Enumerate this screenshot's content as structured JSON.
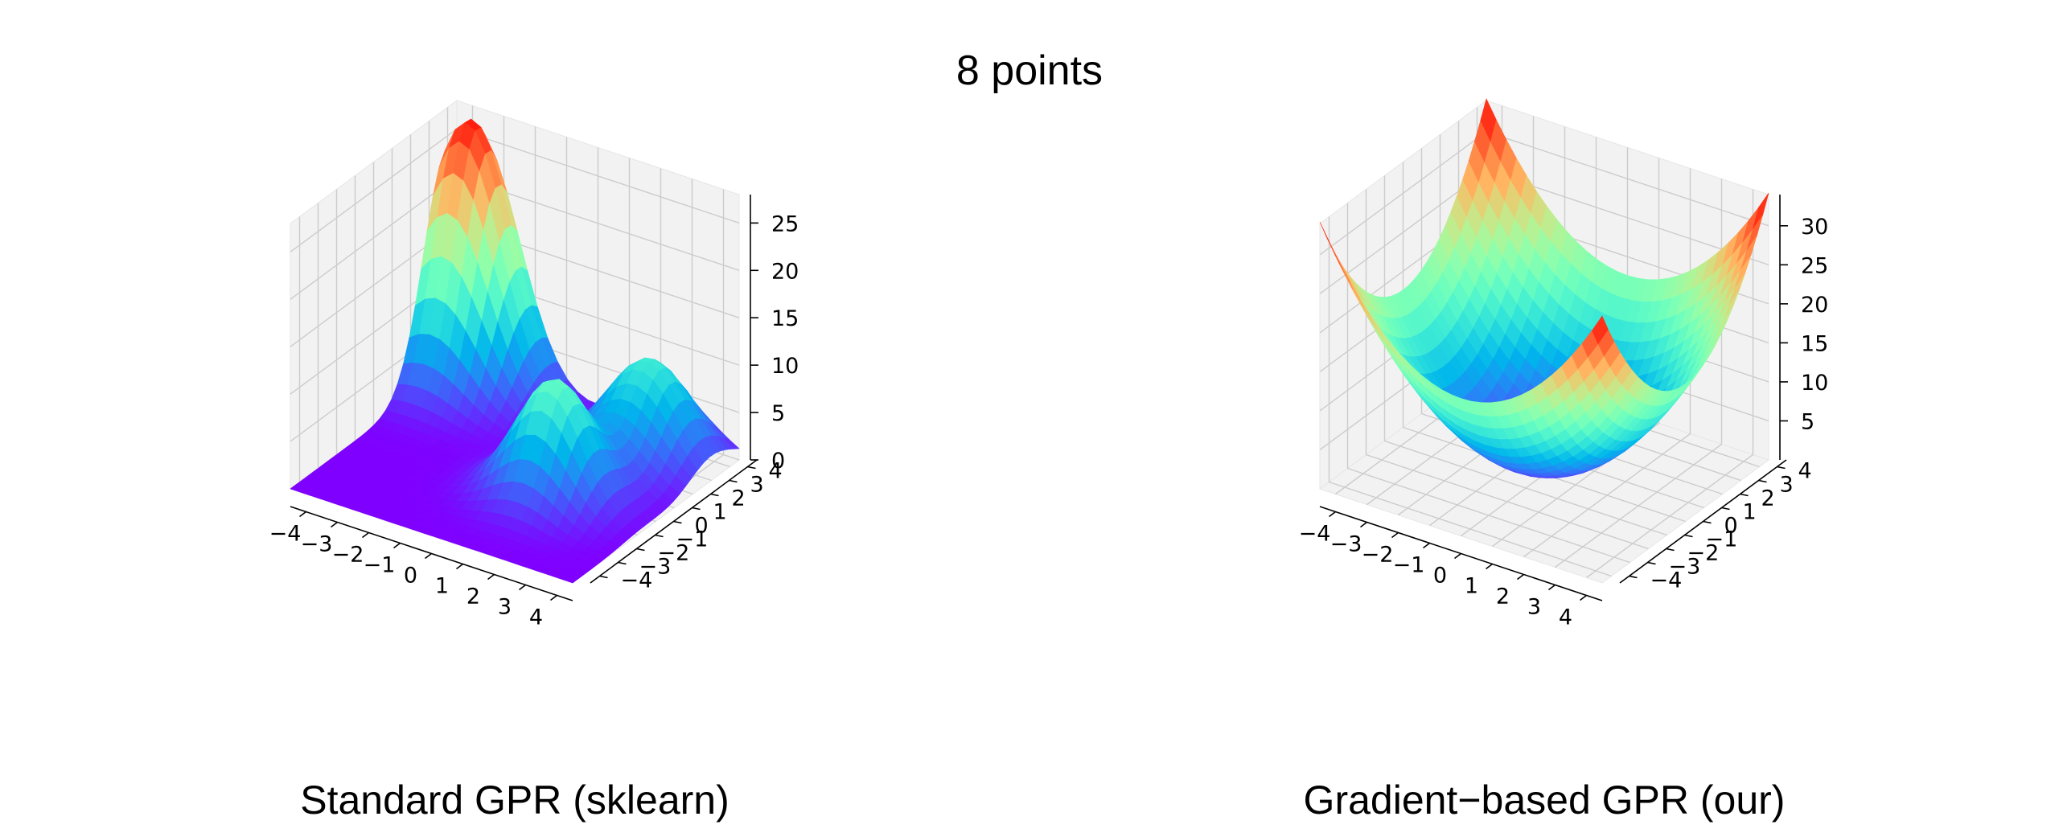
{
  "figure": {
    "title": "8 points"
  },
  "chart_data": [
    {
      "type": "surface3d",
      "title": "Standard GPR (sklearn)",
      "colormap": "rainbow",
      "x": {
        "range": [
          -4.5,
          4.5
        ],
        "ticks": [
          -4,
          -3,
          -2,
          -1,
          0,
          1,
          2,
          3,
          4
        ]
      },
      "y": {
        "range": [
          -4.5,
          4.5
        ],
        "ticks": [
          -4,
          -3,
          -2,
          -1,
          0,
          1,
          2,
          3,
          4
        ]
      },
      "z": {
        "range": [
          0,
          28
        ],
        "ticks": [
          0,
          5,
          10,
          15,
          20,
          25
        ]
      },
      "surface": {
        "description_peaks": [
          {
            "x": -3.8,
            "y": 4.0,
            "z": 27.5
          },
          {
            "x": 1.6,
            "y": -0.6,
            "z": 12.5
          },
          {
            "x": 2.5,
            "y": 3.0,
            "z": 10.5
          }
        ]
      }
    },
    {
      "type": "surface3d",
      "title": "Gradient−based GPR (our)",
      "colormap": "rainbow",
      "x": {
        "range": [
          -4.5,
          4.5
        ],
        "ticks": [
          -4,
          -3,
          -2,
          -1,
          0,
          1,
          2,
          3,
          4
        ]
      },
      "y": {
        "range": [
          -4.5,
          4.5
        ],
        "ticks": [
          -4,
          -3,
          -2,
          -1,
          0,
          1,
          2,
          3,
          4
        ]
      },
      "z": {
        "range": [
          0,
          34
        ],
        "ticks": [
          5,
          10,
          15,
          20,
          25,
          30
        ]
      },
      "surface": {
        "corner_values": [
          {
            "x": -4.5,
            "y": 4.5,
            "z": 33
          },
          {
            "x": -4.5,
            "y": -4.5,
            "z": 26
          },
          {
            "x": 4.5,
            "y": 4.5,
            "z": 29
          },
          {
            "x": 4.5,
            "y": -4.5,
            "z": 23
          }
        ],
        "minimum": {
          "x": 0,
          "y": 0,
          "z": 1
        }
      }
    }
  ]
}
